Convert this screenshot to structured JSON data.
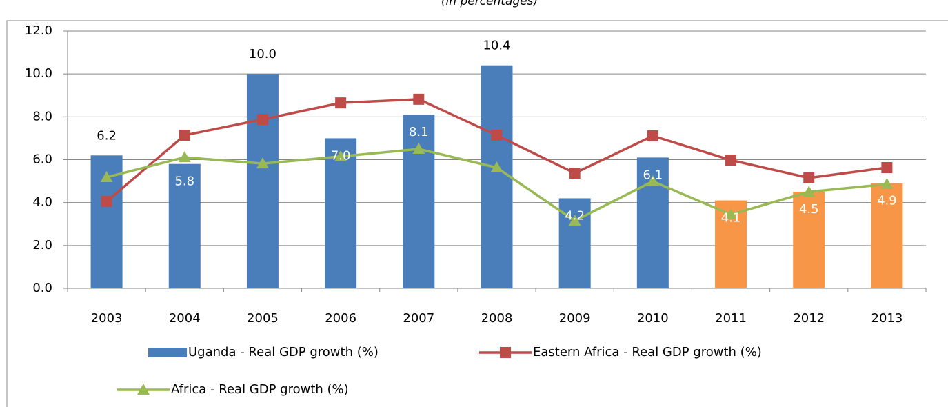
{
  "chart_data": {
    "type": "bar-line",
    "subtitle": "(in percentages)",
    "categories": [
      "2003",
      "2004",
      "2005",
      "2006",
      "2007",
      "2008",
      "2009",
      "2010",
      "2011",
      "2012",
      "2013"
    ],
    "ylim": [
      0,
      12
    ],
    "yticks": [
      {
        "value": 0,
        "label": "0.0"
      },
      {
        "value": 2,
        "label": "2.0"
      },
      {
        "value": 4,
        "label": "4.0"
      },
      {
        "value": 6,
        "label": "6.0"
      },
      {
        "value": 8,
        "label": "8.0"
      },
      {
        "value": 10,
        "label": "10.0"
      },
      {
        "value": 12,
        "label": "12.0"
      }
    ],
    "grid": true,
    "legend": "bottom",
    "series": [
      {
        "name": "Uganda - Real GDP growth (%)",
        "kind": "bar",
        "color": "#4a7ebb",
        "colors": [
          "#4a7ebb",
          "#4a7ebb",
          "#4a7ebb",
          "#4a7ebb",
          "#4a7ebb",
          "#4a7ebb",
          "#4a7ebb",
          "#4a7ebb",
          "#f79646",
          "#f79646",
          "#f79646"
        ],
        "values": [
          6.2,
          5.8,
          10.0,
          7.0,
          8.1,
          10.4,
          4.2,
          6.1,
          4.1,
          4.5,
          4.9
        ],
        "value_labels": [
          "6.2",
          "5.8",
          "10.0",
          "7.0",
          "8.1",
          "10.4",
          "4.2",
          "6.1",
          "4.1",
          "4.5",
          "4.9"
        ]
      },
      {
        "name": "Eastern Africa - Real GDP growth (%)",
        "kind": "line",
        "marker": "square",
        "color": "#be4b48",
        "values": [
          4.05,
          7.14,
          7.88,
          8.65,
          8.82,
          7.14,
          5.37,
          7.11,
          5.98,
          5.15,
          5.63
        ]
      },
      {
        "name": "Africa - Real GDP growth (%)",
        "kind": "line",
        "marker": "triangle",
        "color": "#98b954",
        "values": [
          5.18,
          6.11,
          5.82,
          6.15,
          6.5,
          5.63,
          3.15,
          4.99,
          3.44,
          4.5,
          4.86
        ]
      }
    ]
  }
}
